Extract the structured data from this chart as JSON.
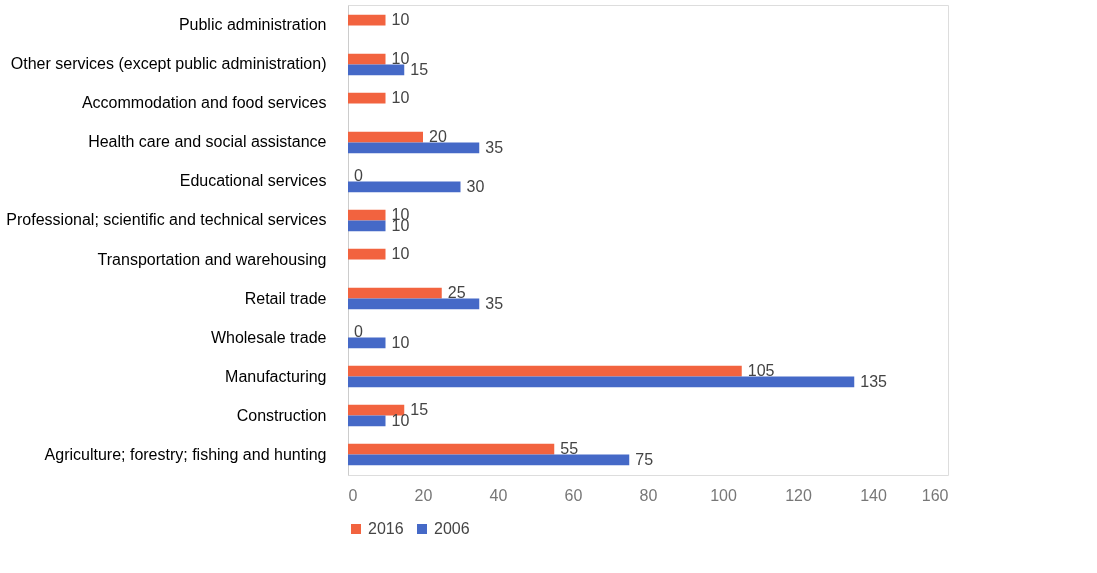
{
  "chart_data": {
    "type": "bar",
    "orientation": "horizontal",
    "categories": [
      "Public administration",
      "Other services (except public administration)",
      "Accommodation and food services",
      "Health care and social assistance",
      "Educational services",
      "Professional; scientific and technical services",
      "Transportation and warehousing",
      "Retail trade",
      "Wholesale trade",
      "Manufacturing",
      "Construction",
      "Agriculture; forestry; fishing and hunting"
    ],
    "series": [
      {
        "name": "2016",
        "color": "#f2633f",
        "values": [
          10,
          10,
          10,
          20,
          0,
          10,
          10,
          25,
          0,
          105,
          15,
          55
        ]
      },
      {
        "name": "2006",
        "color": "#4569c7",
        "values": [
          null,
          15,
          null,
          35,
          30,
          10,
          null,
          35,
          10,
          135,
          10,
          75
        ]
      }
    ],
    "xlim": [
      0,
      160
    ],
    "xticks": [
      0,
      20,
      40,
      60,
      80,
      100,
      120,
      140,
      160
    ],
    "data_labels": true,
    "grid": false,
    "legend": "bottom"
  }
}
